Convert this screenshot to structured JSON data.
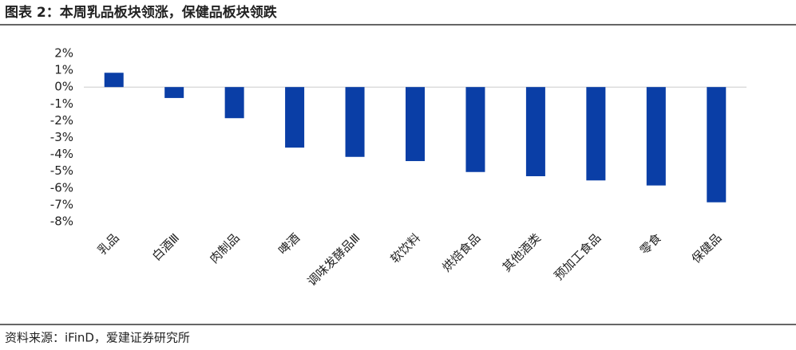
{
  "chart_data": {
    "type": "bar",
    "title": "图表 2：本周乳品板块领涨，保健品板块领跌",
    "source": "资料来源：iFinD，爱建证券研究所",
    "categories": [
      "乳品",
      "白酒Ⅲ",
      "肉制品",
      "啤酒",
      "调味发酵品Ⅲ",
      "软饮料",
      "烘焙食品",
      "其他酒类",
      "预加工食品",
      "零食",
      "保健品"
    ],
    "values": [
      0.85,
      -0.65,
      -1.85,
      -3.6,
      -4.15,
      -4.4,
      -5.05,
      -5.3,
      -5.55,
      -5.85,
      -6.85
    ],
    "color": "#0a3ea6",
    "ylim": [
      -8,
      2
    ],
    "yticks": [
      {
        "value": 2,
        "label": "2%"
      },
      {
        "value": 1,
        "label": "1%"
      },
      {
        "value": 0,
        "label": "0%"
      },
      {
        "value": -1,
        "label": "-1%"
      },
      {
        "value": -2,
        "label": "-2%"
      },
      {
        "value": -3,
        "label": "-3%"
      },
      {
        "value": -4,
        "label": "-4%"
      },
      {
        "value": -5,
        "label": "-5%"
      },
      {
        "value": -6,
        "label": "-6%"
      },
      {
        "value": -7,
        "label": "-7%"
      },
      {
        "value": -8,
        "label": "-8%"
      }
    ],
    "grid": false
  }
}
